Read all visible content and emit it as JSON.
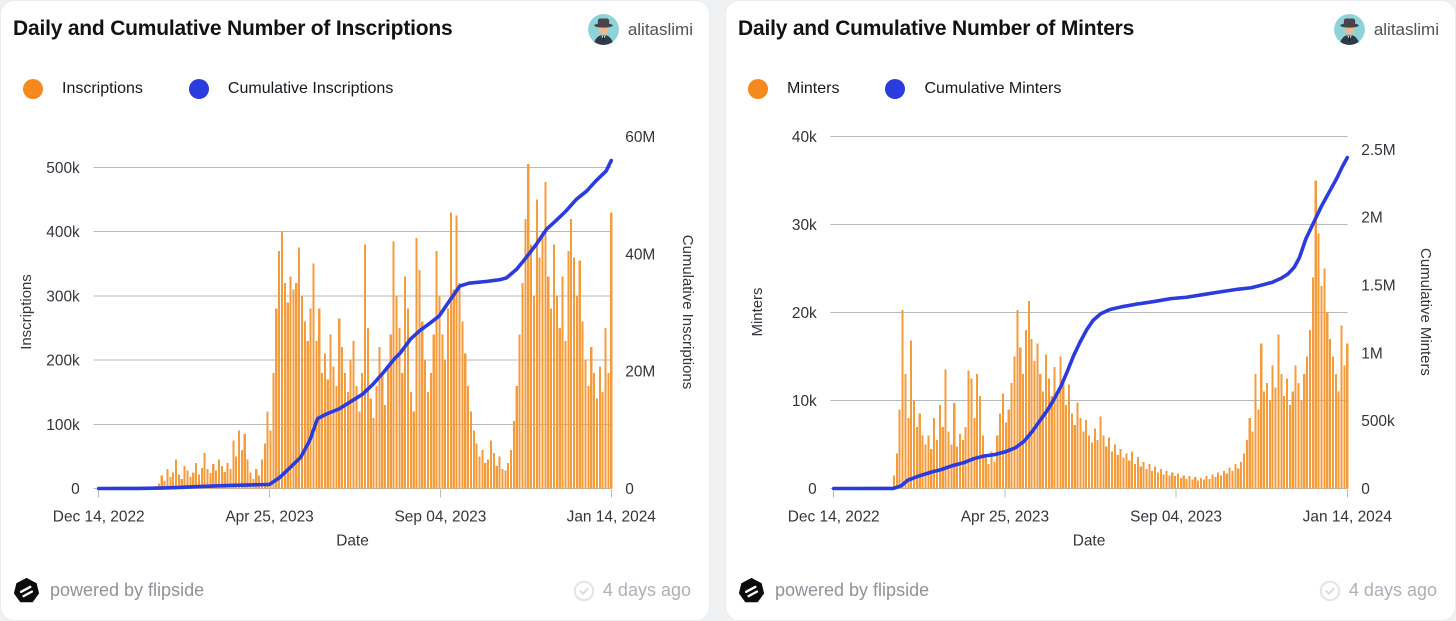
{
  "page": {
    "background": "#eff1f3"
  },
  "cards": [
    {
      "title": "Daily and Cumulative Number of Inscriptions",
      "author": "alitaslimi",
      "legend": [
        {
          "label": "Inscriptions",
          "color": "#f5891d"
        },
        {
          "label": "Cumulative Inscriptions",
          "color": "#2b3cdf"
        }
      ],
      "footer": {
        "powered_by": "powered by flipside",
        "updated": "4 days ago"
      }
    },
    {
      "title": "Daily and Cumulative Number of Minters",
      "author": "alitaslimi",
      "legend": [
        {
          "label": "Minters",
          "color": "#f5891d"
        },
        {
          "label": "Cumulative Minters",
          "color": "#2b3cdf"
        }
      ],
      "footer": {
        "powered_by": "powered by flipside",
        "updated": "4 days ago"
      }
    }
  ],
  "chart_data": [
    {
      "type": "bar+line",
      "title": "Daily and Cumulative Number of Inscriptions",
      "x": {
        "label": "Date",
        "tick_labels": [
          "Dec 14, 2022",
          "Apr 25, 2023",
          "Sep 04, 2023",
          "Jan 14, 2024"
        ],
        "tick_days": [
          0,
          132,
          264,
          396
        ],
        "span_days": 396
      },
      "y_left": {
        "label": "Inscriptions",
        "unit": "k",
        "ticks": [
          0,
          100,
          200,
          300,
          400,
          500
        ],
        "tick_labels": [
          "0",
          "100k",
          "200k",
          "300k",
          "400k",
          "500k"
        ]
      },
      "y_right": {
        "label": "Cumulative Inscriptions",
        "unit": "M",
        "ticks": [
          0,
          20,
          40,
          60
        ],
        "tick_labels": [
          "0",
          "20M",
          "40M",
          "60M"
        ]
      },
      "bar_series": {
        "name": "Inscriptions",
        "color": "#f49b3c",
        "unit": "k",
        "values": [
          0,
          0,
          0,
          0,
          0,
          0,
          0,
          0,
          0,
          0,
          0,
          0,
          0,
          0,
          0,
          0,
          0,
          1,
          1,
          2,
          4,
          8,
          20,
          12,
          30,
          18,
          25,
          45,
          22,
          15,
          35,
          28,
          18,
          25,
          40,
          22,
          32,
          55,
          30,
          24,
          38,
          28,
          45,
          35,
          26,
          40,
          30,
          75,
          50,
          90,
          60,
          85,
          45,
          25,
          15,
          30,
          20,
          45,
          70,
          120,
          90,
          180,
          280,
          370,
          400,
          320,
          290,
          330,
          310,
          320,
          375,
          300,
          260,
          230,
          280,
          350,
          230,
          280,
          180,
          210,
          170,
          240,
          190,
          160,
          265,
          220,
          180,
          150,
          200,
          230,
          160,
          120,
          180,
          380,
          250,
          140,
          110,
          160,
          220,
          180,
          130,
          190,
          240,
          385,
          300,
          250,
          180,
          330,
          280,
          150,
          120,
          390,
          340,
          260,
          200,
          150,
          180,
          240,
          370,
          300,
          240,
          200,
          280,
          430,
          310,
          425,
          320,
          260,
          210,
          160,
          120,
          90,
          70,
          50,
          60,
          40,
          45,
          75,
          55,
          35,
          50,
          30,
          28,
          40,
          60,
          105,
          160,
          240,
          320,
          420,
          505,
          380,
          300,
          450,
          360,
          400,
          477,
          330,
          280,
          380,
          300,
          250,
          330,
          230,
          370,
          420,
          360,
          300,
          355,
          260,
          200,
          160,
          220,
          180,
          140,
          190,
          150,
          250,
          180,
          430
        ]
      },
      "line_series": {
        "name": "Cumulative Inscriptions",
        "color": "#2b3cdf",
        "unit": "M",
        "points_day_value": [
          [
            0,
            0
          ],
          [
            30,
            0.02
          ],
          [
            48,
            0.06
          ],
          [
            60,
            0.15
          ],
          [
            75,
            0.3
          ],
          [
            90,
            0.45
          ],
          [
            105,
            0.55
          ],
          [
            118,
            0.62
          ],
          [
            126,
            0.66
          ],
          [
            132,
            0.7
          ],
          [
            140,
            1.9
          ],
          [
            148,
            3.6
          ],
          [
            156,
            5.3
          ],
          [
            163,
            8.2
          ],
          [
            169,
            11.9
          ],
          [
            176,
            12.7
          ],
          [
            186,
            13.6
          ],
          [
            196,
            15.0
          ],
          [
            204,
            16.1
          ],
          [
            212,
            17.8
          ],
          [
            220,
            19.8
          ],
          [
            228,
            22.0
          ],
          [
            233,
            23.1
          ],
          [
            241,
            25.5
          ],
          [
            248,
            26.9
          ],
          [
            256,
            28.2
          ],
          [
            263,
            29.4
          ],
          [
            271,
            32.0
          ],
          [
            279,
            34.5
          ],
          [
            286,
            35.0
          ],
          [
            300,
            35.3
          ],
          [
            310,
            35.6
          ],
          [
            315,
            35.9
          ],
          [
            323,
            37.4
          ],
          [
            330,
            39.3
          ],
          [
            338,
            41.6
          ],
          [
            346,
            44.2
          ],
          [
            353,
            45.6
          ],
          [
            361,
            47.3
          ],
          [
            369,
            49.3
          ],
          [
            377,
            50.7
          ],
          [
            384,
            52.4
          ],
          [
            392,
            54.1
          ],
          [
            396,
            55.9
          ]
        ]
      }
    },
    {
      "type": "bar+line",
      "title": "Daily and Cumulative Number of Minters",
      "x": {
        "label": "Date",
        "tick_labels": [
          "Dec 14, 2022",
          "Apr 25, 2023",
          "Sep 04, 2023",
          "Jan 14, 2024"
        ],
        "tick_days": [
          0,
          132,
          264,
          396
        ],
        "span_days": 396
      },
      "y_left": {
        "label": "Minters",
        "unit": "k",
        "ticks": [
          0,
          10,
          20,
          30,
          40
        ],
        "tick_labels": [
          "0",
          "10k",
          "20k",
          "30k",
          "40k"
        ]
      },
      "y_right": {
        "label": "Cumulative Minters",
        "unit": "M",
        "ticks": [
          0,
          0.5,
          1,
          1.5,
          2,
          2.5
        ],
        "tick_labels": [
          "0",
          "500k",
          "1M",
          "1.5M",
          "2M",
          "2.5M"
        ]
      },
      "bar_series": {
        "name": "Minters",
        "color": "#f49b3c",
        "unit": "k",
        "values": [
          0,
          0,
          0,
          0,
          0,
          0,
          0,
          0,
          0,
          0,
          0,
          0,
          0,
          0,
          0,
          0,
          0,
          0,
          0,
          0,
          0,
          1.5,
          4,
          9,
          20.3,
          13,
          8,
          16.8,
          10,
          7,
          8.5,
          6,
          5,
          6,
          4.5,
          8,
          5.5,
          9.5,
          7,
          13.5,
          6.5,
          5,
          9.7,
          4.8,
          6.2,
          5.5,
          7,
          13.4,
          12.5,
          8,
          13,
          10.5,
          6,
          3.5,
          2.8,
          4.2,
          3,
          6,
          8.5,
          10.8,
          7.5,
          9,
          12,
          15,
          20.3,
          16,
          13,
          18,
          21.3,
          17,
          14.5,
          16.5,
          13,
          11,
          15.2,
          12.5,
          10.5,
          13.8,
          11,
          15,
          12,
          9.5,
          11.8,
          8.5,
          7.2,
          9.8,
          8,
          6.5,
          7.8,
          6,
          5.2,
          6.8,
          5.5,
          8.2,
          6,
          4.8,
          5.8,
          4.2,
          5,
          3.8,
          4.5,
          3.5,
          4,
          3.2,
          4.2,
          2.8,
          3.6,
          2.5,
          3,
          2.2,
          2.8,
          2,
          2.5,
          1.8,
          2.2,
          1.6,
          2,
          1.5,
          1.8,
          1.4,
          1.7,
          1.2,
          1.5,
          1.1,
          1.4,
          1,
          1.3,
          0.9,
          1.2,
          1,
          1.4,
          1.1,
          1.6,
          1.3,
          1.8,
          1.5,
          2,
          1.7,
          2.4,
          2,
          2.8,
          2.3,
          3,
          4,
          5.5,
          8,
          6.5,
          13,
          9,
          16.5,
          11,
          12,
          10,
          14,
          11.5,
          17.5,
          13,
          10.5,
          12.5,
          9.5,
          11,
          14,
          12,
          10,
          13,
          15,
          18,
          24,
          35,
          29,
          23,
          25,
          20,
          17,
          15,
          13,
          11,
          18.5,
          14,
          16.5
        ]
      },
      "line_series": {
        "name": "Cumulative Minters",
        "color": "#2b3cdf",
        "unit": "M",
        "points_day_value": [
          [
            0,
            0
          ],
          [
            46,
            0.001
          ],
          [
            52,
            0.02
          ],
          [
            57,
            0.06
          ],
          [
            65,
            0.09
          ],
          [
            75,
            0.12
          ],
          [
            83,
            0.14
          ],
          [
            92,
            0.17
          ],
          [
            100,
            0.19
          ],
          [
            108,
            0.22
          ],
          [
            116,
            0.24
          ],
          [
            124,
            0.25
          ],
          [
            132,
            0.27
          ],
          [
            140,
            0.3
          ],
          [
            147,
            0.35
          ],
          [
            153,
            0.42
          ],
          [
            159,
            0.5
          ],
          [
            165,
            0.58
          ],
          [
            170,
            0.66
          ],
          [
            175,
            0.75
          ],
          [
            180,
            0.86
          ],
          [
            185,
            0.98
          ],
          [
            190,
            1.08
          ],
          [
            195,
            1.17
          ],
          [
            200,
            1.24
          ],
          [
            206,
            1.29
          ],
          [
            213,
            1.32
          ],
          [
            222,
            1.34
          ],
          [
            234,
            1.36
          ],
          [
            248,
            1.38
          ],
          [
            260,
            1.4
          ],
          [
            272,
            1.41
          ],
          [
            285,
            1.43
          ],
          [
            298,
            1.45
          ],
          [
            312,
            1.47
          ],
          [
            322,
            1.48
          ],
          [
            330,
            1.5
          ],
          [
            338,
            1.52
          ],
          [
            345,
            1.55
          ],
          [
            350,
            1.58
          ],
          [
            355,
            1.63
          ],
          [
            359,
            1.7
          ],
          [
            364,
            1.84
          ],
          [
            368,
            1.92
          ],
          [
            372,
            2.0
          ],
          [
            376,
            2.08
          ],
          [
            380,
            2.15
          ],
          [
            384,
            2.22
          ],
          [
            388,
            2.29
          ],
          [
            392,
            2.37
          ],
          [
            396,
            2.44
          ]
        ]
      }
    }
  ],
  "style": {
    "bar_color": "#f49b3c",
    "line_color": "#2b3cdf",
    "grid_color": "#b7b9bb",
    "tick_text_color": "#32363b"
  }
}
